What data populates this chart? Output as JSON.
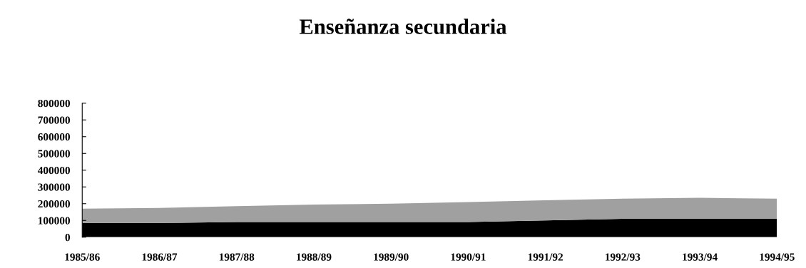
{
  "chart_data": {
    "type": "area",
    "stacked": true,
    "title": "Enseñanza secundaria",
    "categories": [
      "1985/86",
      "1986/87",
      "1987/88",
      "1988/89",
      "1989/90",
      "1990/91",
      "1991/92",
      "1992/93",
      "1993/94",
      "1994/95"
    ],
    "series": [
      {
        "color": "#000000",
        "values": [
          85000,
          85000,
          90000,
          90000,
          90000,
          90000,
          100000,
          110000,
          110000,
          110000
        ]
      },
      {
        "color": "#a0a0a0",
        "values": [
          85000,
          90000,
          95000,
          105000,
          110000,
          120000,
          120000,
          120000,
          125000,
          120000
        ]
      }
    ],
    "ylim": [
      0,
      800000
    ],
    "yticks": [
      0,
      100000,
      200000,
      300000,
      400000,
      500000,
      600000,
      700000,
      800000
    ],
    "grid": false,
    "legend": false
  }
}
